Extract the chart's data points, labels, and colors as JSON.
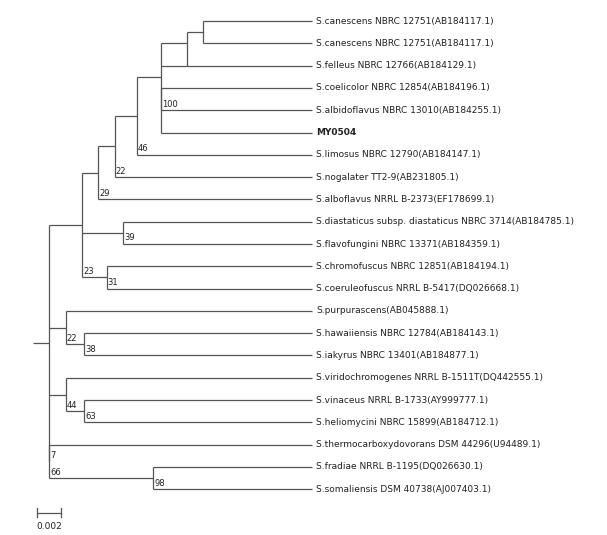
{
  "taxa": [
    "S.canescens NBRC 12751(AB184117.1)",
    "S.canescens NBRC 12751(AB184117.1)",
    "S.felleus NBRC 12766(AB184129.1)",
    "S.coelicolor NBRC 12854(AB184196.1)",
    "S.albidoflavus NBRC 13010(AB184255.1)",
    "MY0504",
    "S.limosus NBRC 12790(AB184147.1)",
    "S.nogalater TT2-9(AB231805.1)",
    "S.alboflavus NRRL B-2373(EF178699.1)",
    "S.diastaticus subsp. diastaticus NBRC 3714(AB184785.1)",
    "S.flavofungini NBRC 13371(AB184359.1)",
    "S.chromofuscus NBRC 12851(AB184194.1)",
    "S.coeruleofuscus NRRL B-5417(DQ026668.1)",
    "S.purpurascens(AB045888.1)",
    "S.hawaiiensis NBRC 12784(AB184143.1)",
    "S.iakyrus NBRC 13401(AB184877.1)",
    "S.viridochromogenes NRRL B-1511T(DQ442555.1)",
    "S.vinaceus NRRL B-1733(AY999777.1)",
    "S.heliomycini NBRC 15899(AB184712.1)",
    "S.thermocarboxydovorans DSM 44296(U94489.1)",
    "S.fradiae NRRL B-1195(DQ026630.1)",
    "S.somaliensis DSM 40738(AJ007403.1)"
  ],
  "line_color": "#555555",
  "text_color": "#222222",
  "bg_color": "#ffffff",
  "scale_bar_value": "0.002",
  "font_size": 6.5
}
